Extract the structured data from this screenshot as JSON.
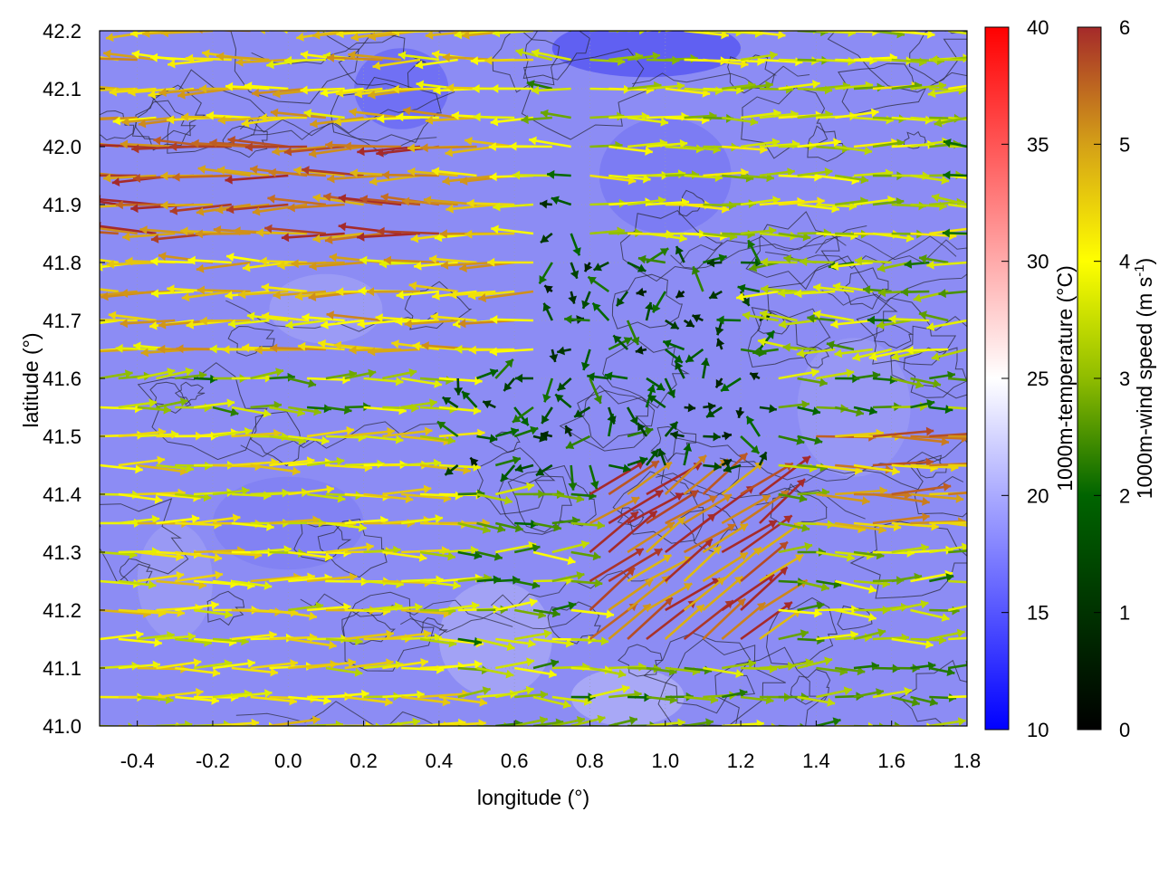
{
  "chart_data": {
    "type": "heatmap",
    "subtype": "vector-field-over-temperature-map-with-terrain-contours",
    "xlabel": "longitude (°)",
    "ylabel": "latitude (°)",
    "xlim": [
      -0.5,
      1.8
    ],
    "ylim": [
      41.0,
      42.2
    ],
    "x_ticks": [
      "-0.4",
      "-0.2",
      "0.0",
      "0.2",
      "0.4",
      "0.6",
      "0.8",
      "1.0",
      "1.2",
      "1.4",
      "1.6",
      "1.8"
    ],
    "y_ticks": [
      "41.0",
      "41.1",
      "41.2",
      "41.3",
      "41.4",
      "41.5",
      "41.6",
      "41.7",
      "41.8",
      "41.9",
      "42.0",
      "42.1",
      "42.2"
    ],
    "grid": true,
    "temperature_colorbar": {
      "label": "1000m-temperature (°C)",
      "range": [
        10,
        40
      ],
      "ticks": [
        "10",
        "15",
        "20",
        "25",
        "30",
        "35",
        "40"
      ],
      "colors": [
        "#0000ff",
        "#ffffff",
        "#ff0000"
      ]
    },
    "wind_colorbar": {
      "label_main": "1000m-wind speed (m s",
      "label_sup": "-1",
      "label_end": ")",
      "range": [
        0,
        6
      ],
      "ticks": [
        "0",
        "1",
        "2",
        "3",
        "4",
        "5",
        "6"
      ],
      "colors": [
        "#000000",
        "#006400",
        "#8fbc00",
        "#ffff00",
        "#d4a017",
        "#c87420",
        "#a52a2a"
      ]
    },
    "temperature_field_approx_c": 19,
    "wind_regions": [
      {
        "area": "north-west",
        "lon": [
          -0.5,
          0.4
        ],
        "lat": [
          41.8,
          42.0
        ],
        "direction": "westward",
        "speed": 5.5
      },
      {
        "area": "north",
        "lon": [
          -0.5,
          0.7
        ],
        "lat": [
          41.6,
          42.2
        ],
        "direction": "westward",
        "speed": 4.5
      },
      {
        "area": "north-east",
        "lon": [
          0.8,
          1.8
        ],
        "lat": [
          41.8,
          42.2
        ],
        "direction": "eastward",
        "speed": 3.5
      },
      {
        "area": "central",
        "lon": [
          0.4,
          1.3
        ],
        "lat": [
          41.4,
          41.9
        ],
        "direction": "variable",
        "speed": 2.0
      },
      {
        "area": "south-west",
        "lon": [
          -0.5,
          0.4
        ],
        "lat": [
          41.0,
          41.5
        ],
        "direction": "eastward",
        "speed": 4.0
      },
      {
        "area": "south-east",
        "lon": [
          0.8,
          1.3
        ],
        "lat": [
          41.1,
          41.4
        ],
        "direction": "north-eastward",
        "speed": 5.5
      },
      {
        "area": "east",
        "lon": [
          1.4,
          1.8
        ],
        "lat": [
          41.3,
          41.5
        ],
        "direction": "eastward",
        "speed": 5.0
      }
    ]
  }
}
